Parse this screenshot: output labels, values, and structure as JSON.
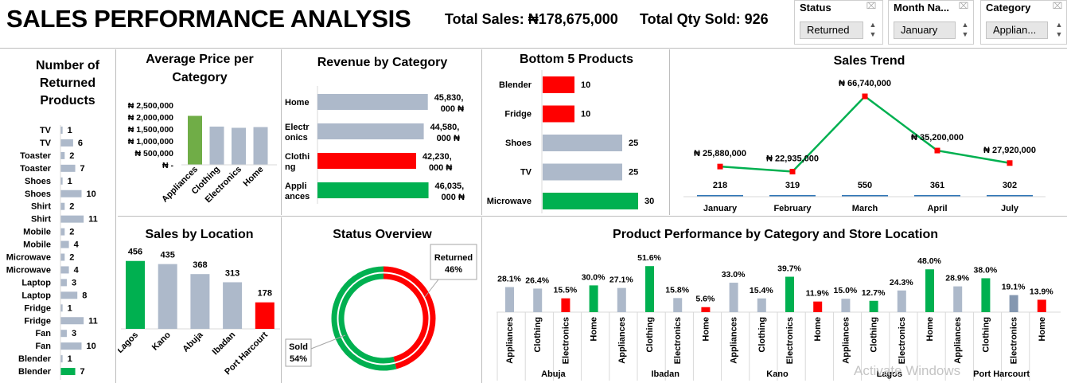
{
  "header": {
    "title": "SALES PERFORMANCE ANALYSIS",
    "total_sales": "Total Sales: ₦178,675,000",
    "total_qty": "Total Qty Sold: 926"
  },
  "slicers": [
    {
      "title": "Status",
      "value": "Returned"
    },
    {
      "title": "Month Na...",
      "value": "January"
    },
    {
      "title": "Category",
      "value": "Applian..."
    }
  ],
  "colors": {
    "grey": "#adb9ca",
    "green": "#00b050",
    "red": "#ff0000",
    "light_green": "#70ad47",
    "blue_grey": "#8497b0"
  },
  "returned_panel": {
    "title": "Number of Returned Products",
    "items": [
      {
        "label": "TV",
        "value": 1,
        "color": "grey"
      },
      {
        "label": "TV",
        "value": 6,
        "color": "grey"
      },
      {
        "label": "Toaster",
        "value": 2,
        "color": "grey"
      },
      {
        "label": "Toaster",
        "value": 7,
        "color": "grey"
      },
      {
        "label": "Shoes",
        "value": 1,
        "color": "grey"
      },
      {
        "label": "Shoes",
        "value": 10,
        "color": "grey"
      },
      {
        "label": "Shirt",
        "value": 2,
        "color": "grey"
      },
      {
        "label": "Shirt",
        "value": 11,
        "color": "grey"
      },
      {
        "label": "Mobile",
        "value": 2,
        "color": "grey"
      },
      {
        "label": "Mobile",
        "value": 4,
        "color": "grey"
      },
      {
        "label": "Microwave",
        "value": 2,
        "color": "grey"
      },
      {
        "label": "Microwave",
        "value": 4,
        "color": "grey"
      },
      {
        "label": "Laptop",
        "value": 3,
        "color": "grey"
      },
      {
        "label": "Laptop",
        "value": 8,
        "color": "grey"
      },
      {
        "label": "Fridge",
        "value": 1,
        "color": "grey"
      },
      {
        "label": "Fridge",
        "value": 11,
        "color": "grey"
      },
      {
        "label": "Fan",
        "value": 3,
        "color": "grey"
      },
      {
        "label": "Fan",
        "value": 10,
        "color": "grey"
      },
      {
        "label": "Blender",
        "value": 1,
        "color": "grey"
      },
      {
        "label": "Blender",
        "value": 7,
        "color": "green"
      }
    ]
  },
  "avg_price": {
    "title_line1": "Average Price per",
    "title_line2": "Category",
    "y_ticks": [
      "₦ 2,500,000",
      "₦ 2,000,000",
      "₦ 1,500,000",
      "₦ 1,000,000",
      "₦ 500,000",
      "₦ -"
    ],
    "categories": [
      "Appliances",
      "Clothing",
      "Electronics",
      "Home"
    ],
    "values": [
      2050000,
      1600000,
      1550000,
      1580000
    ],
    "colors": [
      "light_green",
      "grey",
      "grey",
      "grey"
    ],
    "ylim": [
      0,
      2500000
    ]
  },
  "revenue": {
    "title": "Revenue by Category",
    "items": [
      {
        "label": "Home",
        "value": 45830000,
        "text1": "45,830,",
        "text2": "000 ₦",
        "color": "grey"
      },
      {
        "label1": "Electr",
        "label2": "onics",
        "value": 44580000,
        "text1": "44,580,",
        "text2": "000 ₦",
        "color": "grey"
      },
      {
        "label1": "Clothi",
        "label2": "ng",
        "value": 42230000,
        "text1": "42,230,",
        "text2": "000 ₦",
        "color": "red"
      },
      {
        "label1": "Appli",
        "label2": "ances",
        "value": 46035000,
        "text1": "46,035,",
        "text2": "000 ₦",
        "color": "green"
      }
    ]
  },
  "bottom5": {
    "title": "Bottom 5 Products",
    "items": [
      {
        "label": "Blender",
        "value": 10,
        "color": "red"
      },
      {
        "label": "Fridge",
        "value": 10,
        "color": "red"
      },
      {
        "label": "Shoes",
        "value": 25,
        "color": "grey"
      },
      {
        "label": "TV",
        "value": 25,
        "color": "grey"
      },
      {
        "label": "Microwave",
        "value": 30,
        "color": "green"
      }
    ]
  },
  "trend": {
    "title": "Sales Trend",
    "months": [
      "January",
      "February",
      "March",
      "April",
      "July"
    ],
    "sales": [
      25880000,
      22935000,
      66740000,
      35200000,
      27920000
    ],
    "sales_labels": [
      "₦ 25,880,000",
      "₦ 22,935,000",
      "₦ 66,740,000",
      "₦ 35,200,000",
      "₦ 27,920,000"
    ],
    "qty": [
      218,
      319,
      550,
      361,
      302
    ]
  },
  "location": {
    "title": "Sales by Location",
    "categories": [
      "Lagos",
      "Kano",
      "Abuja",
      "Ibadan",
      "Port Harcourt"
    ],
    "values": [
      456,
      435,
      368,
      313,
      178
    ],
    "colors": [
      "green",
      "grey",
      "grey",
      "grey",
      "red"
    ]
  },
  "status": {
    "title": "Status Overview",
    "returned_label": "Returned",
    "returned_pct": "46%",
    "returned_value": 46,
    "sold_label": "Sold",
    "sold_pct": "54%",
    "sold_value": 54
  },
  "product_perf": {
    "title": "Product Performance by Category and Store Location",
    "locations": [
      "Abuja",
      "Ibadan",
      "Kano",
      "Lagos",
      "Port Harcourt"
    ],
    "categories": [
      "Appliances",
      "Clothing",
      "Electronics",
      "Home"
    ],
    "values": [
      [
        28.1,
        26.4,
        15.5,
        30.0
      ],
      [
        27.1,
        51.6,
        15.8,
        5.6
      ],
      [
        33.0,
        15.4,
        39.7,
        11.9
      ],
      [
        15.0,
        12.7,
        24.3,
        48.0
      ],
      [
        28.9,
        38.0,
        19.1,
        13.9
      ]
    ],
    "labels": [
      [
        "28.1%",
        "26.4%",
        "15.5%",
        "30.0%"
      ],
      [
        "27.1%",
        "51.6%",
        "15.8%",
        "5.6%"
      ],
      [
        "33.0%",
        "15.4%",
        "39.7%",
        "11.9%"
      ],
      [
        "15.0%",
        "12.7%",
        "24.3%",
        "48.0%"
      ],
      [
        "28.9%",
        "38.0%",
        "19.1%",
        "13.9%"
      ]
    ],
    "colors": [
      [
        "grey",
        "grey",
        "red",
        "green"
      ],
      [
        "grey",
        "green",
        "grey",
        "red"
      ],
      [
        "grey",
        "grey",
        "green",
        "red"
      ],
      [
        "grey",
        "green",
        "grey",
        "green"
      ],
      [
        "grey",
        "green",
        "blue_grey",
        "red"
      ]
    ]
  },
  "watermark": "Activate Windows"
}
